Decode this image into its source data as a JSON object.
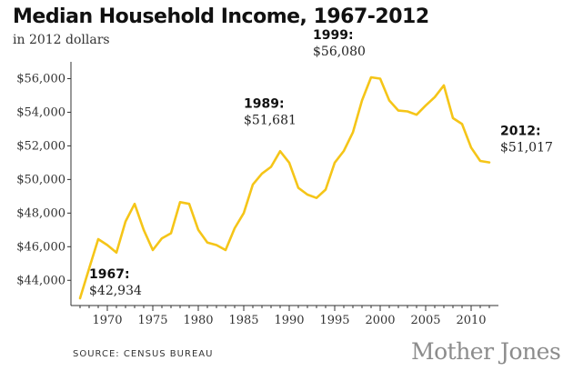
{
  "chart_data": {
    "type": "line",
    "title": "Median Household Income, 1967-2012",
    "subtitle": "in 2012 dollars",
    "xlabel": "",
    "ylabel": "",
    "xlim": [
      1966,
      2013
    ],
    "ylim": [
      42500,
      57000
    ],
    "x_ticks": [
      1970,
      1975,
      1980,
      1985,
      1990,
      1995,
      2000,
      2005,
      2010
    ],
    "y_ticks": [
      {
        "value": 44000,
        "label": "$44,000"
      },
      {
        "value": 46000,
        "label": "$46,000"
      },
      {
        "value": 48000,
        "label": "$48,000"
      },
      {
        "value": 50000,
        "label": "$50,000"
      },
      {
        "value": 52000,
        "label": "$52,000"
      },
      {
        "value": 54000,
        "label": "$54,000"
      },
      {
        "value": 56000,
        "label": "$56,000"
      }
    ],
    "color": "#f5c518",
    "series": [
      {
        "name": "Median household income",
        "x": [
          1967,
          1968,
          1969,
          1970,
          1971,
          1972,
          1973,
          1974,
          1975,
          1976,
          1977,
          1978,
          1979,
          1980,
          1981,
          1982,
          1983,
          1984,
          1985,
          1986,
          1987,
          1988,
          1989,
          1990,
          1991,
          1992,
          1993,
          1994,
          1995,
          1996,
          1997,
          1998,
          1999,
          2000,
          2001,
          2002,
          2003,
          2004,
          2005,
          2006,
          2007,
          2008,
          2009,
          2010,
          2011,
          2012
        ],
        "values": [
          42934,
          44700,
          46450,
          46100,
          45650,
          47500,
          48550,
          47000,
          45800,
          46500,
          46800,
          48650,
          48550,
          47000,
          46250,
          46100,
          45800,
          47100,
          48000,
          49700,
          50350,
          50750,
          51681,
          51000,
          49500,
          49100,
          48900,
          49400,
          51000,
          51700,
          52800,
          54700,
          56080,
          56000,
          54700,
          54100,
          54050,
          53850,
          54400,
          54900,
          55600,
          53650,
          53300,
          51900,
          51100,
          51017
        ]
      }
    ],
    "annotations": [
      {
        "year_label": "1967:",
        "value_label": "$42,934",
        "x": 1967,
        "value": 42934
      },
      {
        "year_label": "1989:",
        "value_label": "$51,681",
        "x": 1989,
        "value": 51681
      },
      {
        "year_label": "1999:",
        "value_label": "$56,080",
        "x": 1999,
        "value": 56080
      },
      {
        "year_label": "2012:",
        "value_label": "$51,017",
        "x": 2012,
        "value": 51017
      }
    ]
  },
  "source": "SOURCE: CENSUS BUREAU",
  "brand": "Mother Jones"
}
